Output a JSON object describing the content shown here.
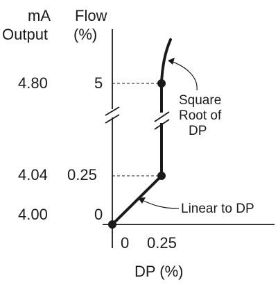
{
  "headers": {
    "ma_line1": "mA",
    "ma_line2": "Output",
    "flow_line1": "Flow",
    "flow_line2": "(%)"
  },
  "ma_values": [
    "4.80",
    "4.04",
    "4.00"
  ],
  "flow_values": [
    "5",
    "0.25",
    "0"
  ],
  "dp_ticks": [
    "0",
    "0.25"
  ],
  "x_axis_label": "DP (%)",
  "annotations": {
    "square_root_line1": "Square",
    "square_root_line2": "Root of",
    "square_root_line3": "DP",
    "linear": "Linear to DP"
  },
  "chart_data": {
    "type": "line",
    "xlabel": "DP (%)",
    "ylabel": "Flow (%)",
    "series": [
      {
        "values": [
          [
            0,
            0
          ],
          [
            0.25,
            0.25
          ],
          [
            0.25,
            5
          ]
        ]
      }
    ],
    "points": [
      [
        0,
        0
      ],
      [
        0.25,
        0.25
      ],
      [
        0.25,
        5
      ]
    ]
  },
  "colors": {
    "ink": "#1a1a1a",
    "background": "#ffffff"
  }
}
